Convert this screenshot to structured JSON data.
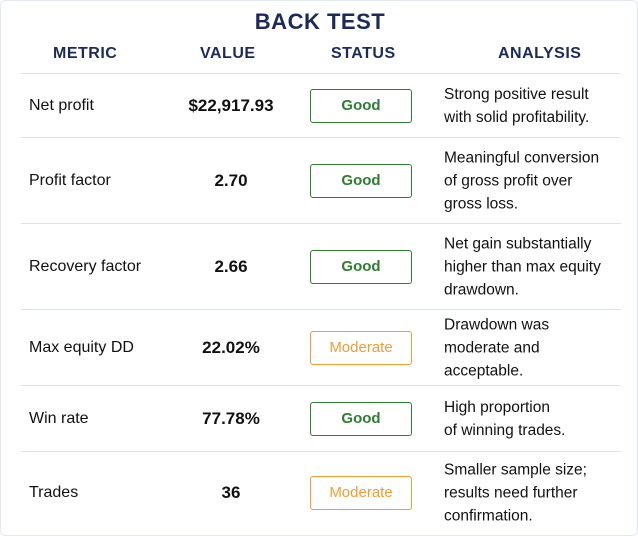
{
  "title": "BACK TEST",
  "columns": {
    "metric": "METRIC",
    "value": "VALUE",
    "status": "STATUS",
    "analysis": "ANALYSIS"
  },
  "rows": [
    {
      "metric": "Net profit",
      "value": "$22,917.93",
      "status": "Good",
      "analysis": "Strong positive result\nwith solid profitability."
    },
    {
      "metric": "Profit factor",
      "value": "2.70",
      "status": "Good",
      "analysis": "Meaningful conversion\nof gross profit over\ngross loss."
    },
    {
      "metric": "Recovery factor",
      "value": "2.66",
      "status": "Good",
      "analysis": "Net gain substantially\nhigher than max equity\ndrawdown."
    },
    {
      "metric": "Max equity DD",
      "value": "22.02%",
      "status": "Moderate",
      "analysis": "Drawdown was\nmoderate and\nacceptable."
    },
    {
      "metric": "Win rate",
      "value": "77.78%",
      "status": "Good",
      "analysis": "High proportion\nof winning trades."
    },
    {
      "metric": "Trades",
      "value": "36",
      "status": "Moderate",
      "analysis": "Smaller sample size;\nresults need further\nconfirmation."
    }
  ],
  "colors": {
    "good": "#2e7d32",
    "moderate": "#f39c34",
    "heading": "#1b2a5a"
  }
}
